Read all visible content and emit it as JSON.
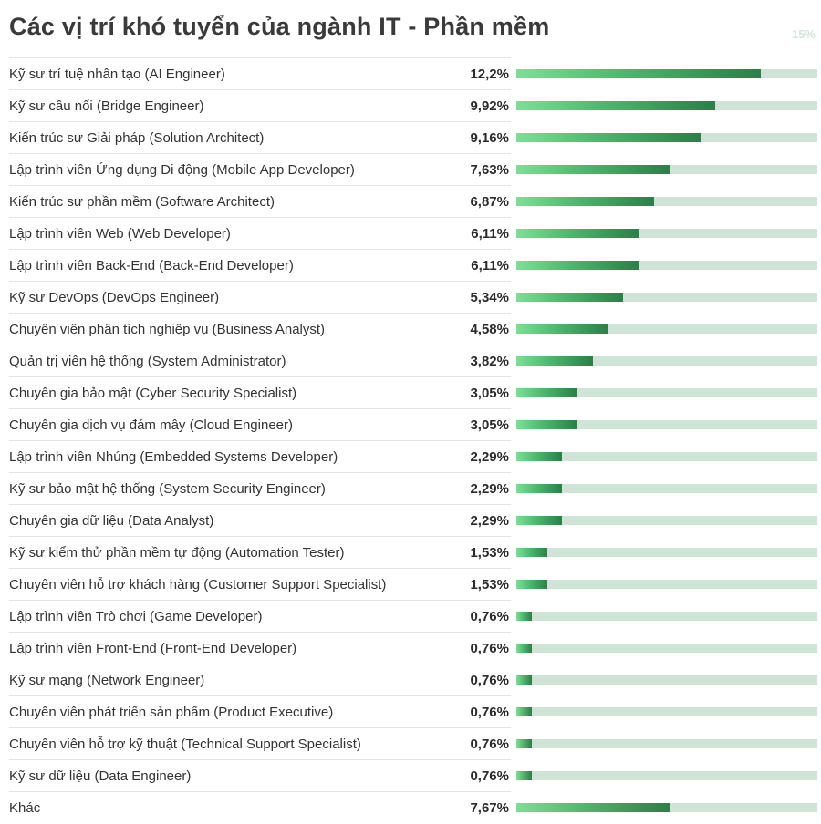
{
  "title": "Các vị trí khó tuyển của ngành IT - Phần mềm",
  "colors": {
    "bar_start": "#7ddf95",
    "bar_end": "#2f7d48",
    "track": "#cfe3d6",
    "max_label": "#d3e6dc"
  },
  "chart_data": {
    "type": "bar",
    "orientation": "horizontal",
    "title": "Các vị trí khó tuyển của ngành IT - Phần mềm",
    "max_label": "15%",
    "xlim": [
      0,
      15
    ],
    "categories": [
      "Kỹ sư trí tuệ nhân tạo (AI Engineer)",
      "Kỹ sư cầu nối (Bridge Engineer)",
      "Kiến trúc sư Giải pháp (Solution Architect)",
      "Lập trình viên Ứng dụng Di động (Mobile App Developer)",
      "Kiến trúc sư phần mềm (Software Architect)",
      "Lập trình viên Web (Web Developer)",
      "Lập trình viên Back-End (Back-End Developer)",
      "Kỹ sư DevOps (DevOps Engineer)",
      "Chuyên viên phân tích nghiệp vụ (Business Analyst)",
      "Quản trị viên hệ thống (System Administrator)",
      "Chuyên gia bảo mật (Cyber Security Specialist)",
      "Chuyên gia dịch vụ đám mây (Cloud Engineer)",
      "Lập trình viên Nhúng (Embedded Systems Developer)",
      "Kỹ sư bảo mật hệ thống (System Security Engineer)",
      "Chuyên gia dữ liệu (Data Analyst)",
      "Kỹ sư kiểm thử phần mềm tự động (Automation Tester)",
      "Chuyên viên hỗ trợ khách hàng (Customer Support Specialist)",
      "Lập trình viên Trò chơi (Game Developer)",
      "Lập trình viên Front-End (Front-End Developer)",
      "Kỹ sư mạng (Network Engineer)",
      "Chuyên viên phát triển sản phẩm (Product Executive)",
      "Chuyên viên hỗ trợ kỹ thuật (Technical Support Specialist)",
      "Kỹ sư dữ liệu (Data Engineer)",
      "Khác"
    ],
    "values": [
      12.2,
      9.92,
      9.16,
      7.63,
      6.87,
      6.11,
      6.11,
      5.34,
      4.58,
      3.82,
      3.05,
      3.05,
      2.29,
      2.29,
      2.29,
      1.53,
      1.53,
      0.76,
      0.76,
      0.76,
      0.76,
      0.76,
      0.76,
      7.67
    ],
    "value_labels": [
      "12,2%",
      "9,92%",
      "9,16%",
      "7,63%",
      "6,87%",
      "6,11%",
      "6,11%",
      "5,34%",
      "4,58%",
      "3,82%",
      "3,05%",
      "3,05%",
      "2,29%",
      "2,29%",
      "2,29%",
      "1,53%",
      "1,53%",
      "0,76%",
      "0,76%",
      "0,76%",
      "0,76%",
      "0,76%",
      "0,76%",
      "7,67%"
    ]
  }
}
